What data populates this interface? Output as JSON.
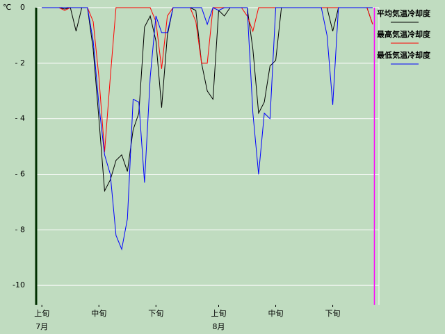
{
  "chart_data": {
    "type": "line",
    "y_unit": "℃",
    "x": [
      0,
      1,
      2,
      3,
      4,
      5,
      6,
      7,
      8,
      9,
      10,
      11,
      12,
      13,
      14,
      15,
      16,
      17,
      18,
      19,
      20,
      21,
      22,
      23,
      24,
      25,
      26,
      27,
      28,
      29,
      30,
      31,
      32,
      33,
      34,
      35,
      36,
      37,
      38,
      39,
      40,
      41,
      42,
      43,
      44,
      45,
      46,
      47,
      48,
      49,
      50,
      51,
      52,
      53,
      54,
      55,
      56,
      57,
      58
    ],
    "series": [
      {
        "name": "平均気温冷却度",
        "color": "#000000",
        "values": [
          0,
          0,
          0,
          0,
          -0.05,
          0,
          -0.85,
          0,
          0,
          -1.5,
          -4.0,
          -6.6,
          -6.2,
          -5.5,
          -5.3,
          -5.9,
          -4.4,
          -3.8,
          -0.7,
          -0.3,
          -1.2,
          -3.6,
          -1.0,
          0,
          0,
          0,
          0,
          -0.1,
          -2.0,
          -3.0,
          -3.3,
          -0.1,
          -0.3,
          0,
          0,
          0,
          0,
          -1.5,
          -3.8,
          -3.4,
          -2.1,
          -1.9,
          0,
          0,
          0,
          0,
          0,
          0,
          0,
          0,
          0,
          -0.85,
          0,
          0,
          0,
          0,
          0,
          0,
          -0.6
        ]
      },
      {
        "name": "最高気温冷却度",
        "color": "#ff0000",
        "values": [
          0,
          0,
          0,
          0,
          -0.1,
          0,
          0,
          0,
          0,
          -0.5,
          -2.5,
          -5.2,
          -2.5,
          0,
          0,
          0,
          0,
          0,
          0,
          0,
          -0.5,
          -2.2,
          -0.3,
          0,
          0,
          0,
          0,
          -0.5,
          -2.0,
          -2.0,
          0,
          0,
          0,
          0,
          0,
          0,
          -0.3,
          -0.85,
          0,
          0,
          0,
          0,
          0,
          0,
          0,
          0,
          0,
          0,
          0,
          0,
          0,
          0,
          0,
          0,
          0,
          0,
          0,
          0,
          -0.6
        ]
      },
      {
        "name": "最低気温冷却度",
        "color": "#0000ff",
        "values": [
          0,
          0,
          0,
          0,
          0,
          0,
          0,
          0,
          0,
          -1.2,
          -3.5,
          -5.3,
          -6.0,
          -8.2,
          -8.7,
          -7.6,
          -3.3,
          -3.4,
          -6.3,
          -2.5,
          -0.3,
          -0.9,
          -0.9,
          0,
          0,
          0,
          0,
          0,
          0,
          -0.6,
          0,
          -0.1,
          0,
          0,
          0,
          0,
          0,
          -3.8,
          -6.0,
          -3.8,
          -4.0,
          0,
          0,
          0,
          0,
          0,
          0,
          0,
          0,
          0,
          -1.0,
          -3.5,
          0,
          0,
          0,
          0,
          0,
          0,
          0
        ]
      }
    ],
    "xlim": [
      -1,
      59.1
    ],
    "xticks": [
      {
        "value": 0,
        "label": "上旬"
      },
      {
        "value": 10,
        "label": "中旬"
      },
      {
        "value": 20,
        "label": "下旬"
      },
      {
        "value": 31,
        "label": "上旬"
      },
      {
        "value": 41,
        "label": "中旬"
      },
      {
        "value": 51,
        "label": "下旬"
      }
    ],
    "months": [
      {
        "value": 0,
        "label": "7月"
      },
      {
        "value": 31,
        "label": "8月"
      }
    ],
    "marker_x": 58.3,
    "marker_color": "#ff00ff",
    "ylim": [
      -10.7,
      0
    ],
    "yticks": [
      0,
      {
        "value": -2,
        "label": "- 2"
      },
      {
        "value": -4,
        "label": "- 4"
      },
      {
        "value": -6,
        "label": "- 6"
      },
      {
        "value": -8,
        "label": "- 8"
      },
      -10
    ],
    "grid": true
  }
}
